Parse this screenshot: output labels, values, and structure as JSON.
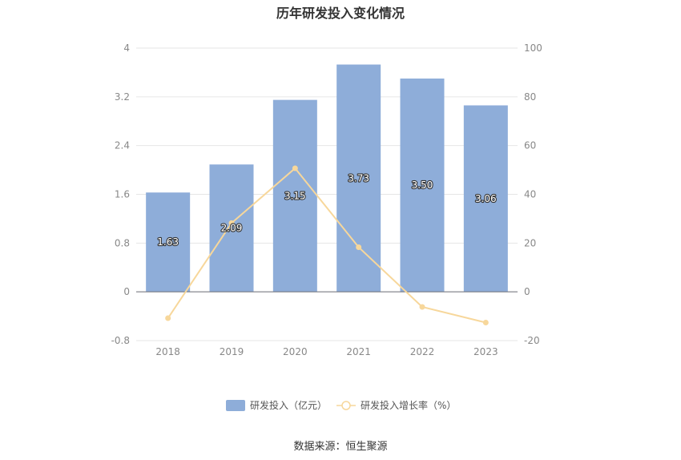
{
  "title": "历年研发投入变化情况",
  "source": "数据来源：恒生聚源",
  "chart_data": {
    "type": "bar",
    "title": "历年研发投入变化情况",
    "categories": [
      "2018",
      "2019",
      "2020",
      "2021",
      "2022",
      "2023"
    ],
    "series": [
      {
        "name": "研发投入（亿元）",
        "type": "bar",
        "axis": "left",
        "values": [
          1.63,
          2.09,
          3.15,
          3.73,
          3.5,
          3.06
        ],
        "labels": [
          "1.63",
          "2.09",
          "3.15",
          "3.73",
          "3.50",
          "3.06"
        ],
        "color": "#8eadd9"
      },
      {
        "name": "研发投入增长率（%）",
        "type": "line",
        "axis": "right",
        "values": [
          -10.8,
          28.2,
          50.7,
          18.3,
          -6.2,
          -12.6
        ],
        "color": "#f7d79b"
      }
    ],
    "y_left": {
      "min": -0.8,
      "max": 4,
      "ticks": [
        "-0.8",
        "0",
        "0.8",
        "1.6",
        "2.4",
        "3.2",
        "4"
      ]
    },
    "y_right": {
      "min": -20,
      "max": 100,
      "ticks": [
        "-20",
        "0",
        "20",
        "40",
        "60",
        "80",
        "100"
      ]
    },
    "grid": true,
    "legend": "bottom-center"
  }
}
